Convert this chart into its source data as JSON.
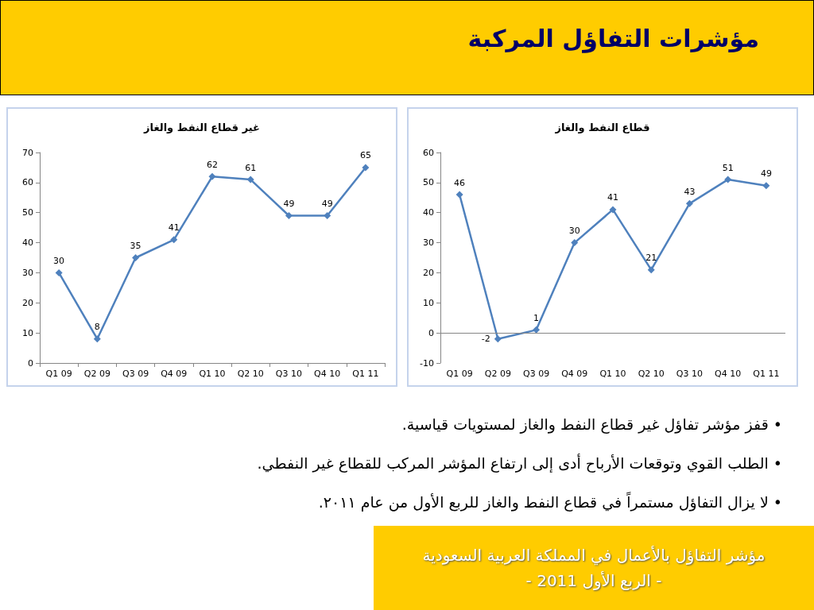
{
  "chart_data": [
    {
      "type": "other",
      "title": "مؤشرات التفاؤل المركبة"
    },
    {
      "type": "line",
      "title": "قطاع النفط والغاز",
      "categories": [
        "Q1 09",
        "Q2 09",
        "Q3 09",
        "Q4 09",
        "Q1 10",
        "Q2 10",
        "Q3 10",
        "Q4 10",
        "Q1 11"
      ],
      "series": [
        {
          "color": "#4f81bd",
          "values": [
            46,
            -2,
            1,
            30,
            41,
            21,
            43,
            51,
            49
          ]
        }
      ],
      "ylim": [
        -10,
        60
      ],
      "yticks": [
        -10,
        0,
        10,
        20,
        30,
        40,
        50,
        60
      ],
      "ref_lines": [
        {
          "axis": "y",
          "value": 0,
          "color": "#868686"
        }
      ],
      "grid": false,
      "marker": "diamond",
      "line_style": "solid",
      "data_labels": true
    },
    {
      "type": "line",
      "title": "غير قطاع النفط والغاز",
      "categories": [
        "Q1 09",
        "Q2 09",
        "Q3 09",
        "Q4 09",
        "Q1 10",
        "Q2 10",
        "Q3 10",
        "Q4 10",
        "Q1 11"
      ],
      "series": [
        {
          "color": "#4f81bd",
          "values": [
            30,
            8,
            35,
            41,
            62,
            61,
            49,
            49,
            65
          ]
        }
      ],
      "ylim": [
        0,
        70
      ],
      "yticks": [
        0,
        10,
        20,
        30,
        40,
        50,
        60,
        70
      ],
      "grid": false,
      "marker": "diamond",
      "line_style": "solid",
      "data_labels": true
    },
    {
      "type": "other",
      "annotations": [
        "• قفز مؤشر تفاؤل غير قطاع النفط والغاز لمستويات قياسية.",
        "• الطلب القوي وتوقعات الأرباح أدى إلى ارتفاع المؤشر المركب للقطاع غير النفطي.",
        "• لا يزال التفاؤل مستمراً في قطاع النفط والغاز للربع الأول من عام ٢٠١١."
      ]
    },
    {
      "type": "other",
      "annotations": [
        "مؤشر التفاؤل بالأعمال في المملكة العربية السعودية",
        "- الربع الأول 2011 -"
      ]
    }
  ]
}
